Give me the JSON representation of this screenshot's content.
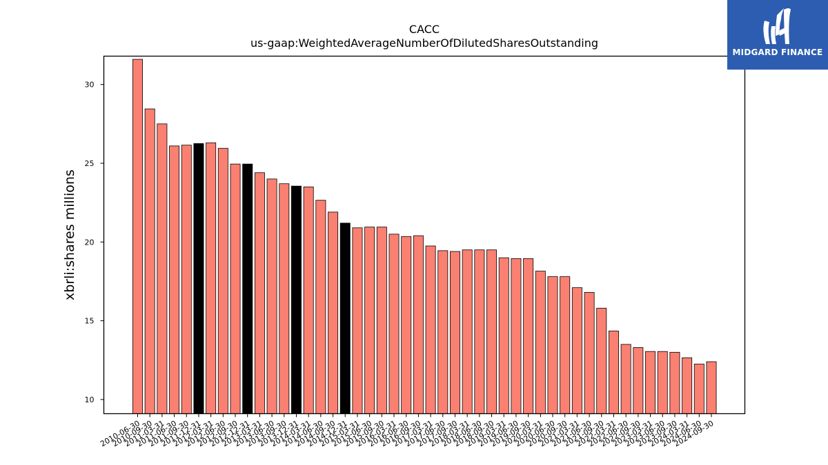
{
  "chart_data": {
    "type": "bar",
    "title": "CACC",
    "subtitle": "us-gaap:WeightedAverageNumberOfDilutedSharesOutstanding",
    "ylabel": "xbrli:shares millions",
    "xlabel": "",
    "ylim": [
      9.1,
      31.8
    ],
    "yticks": [
      10,
      15,
      20,
      25,
      30
    ],
    "categories": [
      "2010-06-30",
      "2010-09-30",
      "2011-03-31",
      "2011-06-30",
      "2011-09-30",
      "2011-12-31",
      "2012-03-31",
      "2012-06-30",
      "2012-09-30",
      "2012-12-31",
      "2013-03-31",
      "2013-06-30",
      "2013-09-30",
      "2013-12-31",
      "2014-03-31",
      "2014-06-30",
      "2014-09-30",
      "2014-12-31",
      "2015-03-31",
      "2015-06-30",
      "2015-09-30",
      "2016-03-31",
      "2016-06-30",
      "2016-09-30",
      "2017-03-31",
      "2017-06-30",
      "2017-09-30",
      "2018-03-31",
      "2018-06-30",
      "2018-09-30",
      "2019-03-31",
      "2019-06-30",
      "2019-09-30",
      "2020-03-31",
      "2020-06-30",
      "2020-09-30",
      "2021-03-31",
      "2021-06-30",
      "2021-09-30",
      "2022-03-31",
      "2022-06-30",
      "2022-09-30",
      "2023-03-31",
      "2023-06-30",
      "2023-09-30",
      "2024-03-31",
      "2024-06-30",
      "2024-09-30"
    ],
    "values": [
      31.6,
      28.45,
      27.5,
      26.1,
      26.15,
      26.25,
      26.3,
      25.95,
      24.95,
      24.95,
      24.4,
      24.0,
      23.7,
      23.55,
      23.5,
      22.65,
      21.9,
      21.2,
      20.9,
      20.95,
      20.95,
      20.5,
      20.35,
      20.4,
      19.75,
      19.45,
      19.4,
      19.5,
      19.5,
      19.5,
      19.0,
      18.95,
      18.95,
      18.15,
      17.8,
      17.8,
      17.1,
      16.8,
      15.8,
      14.35,
      13.5,
      13.3,
      13.05,
      13.05,
      13.0,
      12.65,
      12.25,
      12.4
    ],
    "highlighted_indices": [
      5,
      9,
      13,
      17
    ],
    "grid": false,
    "colors": {
      "bar": "#fa8072",
      "highlight": "#000000",
      "edge": "#000000"
    }
  },
  "logo": {
    "text": "MIDGARD FINANCE",
    "background": "#2c5db0"
  }
}
